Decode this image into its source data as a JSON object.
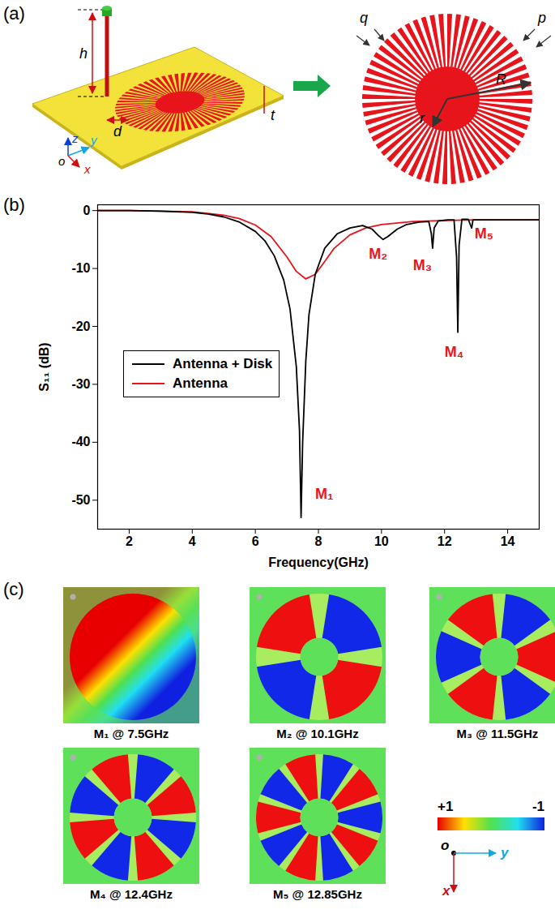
{
  "panel_a": {
    "label": "(a)",
    "left_view": {
      "labels": [
        "h",
        "d",
        "t"
      ],
      "axes": [
        "z",
        "y",
        "o",
        "x"
      ]
    },
    "right_view": {
      "labels": [
        "q",
        "p",
        "R",
        "r"
      ]
    },
    "spokes": 60
  },
  "chart_data": {
    "type": "line",
    "panel_label": "(b)",
    "xlabel": "Frequency(GHz)",
    "ylabel": "S₁₁ (dB)",
    "xlim": [
      1,
      15
    ],
    "ylim": [
      -55,
      1
    ],
    "xticks": [
      2,
      4,
      6,
      8,
      10,
      12,
      14
    ],
    "yticks": [
      0,
      -10,
      -20,
      -30,
      -40,
      -50
    ],
    "legend": "center left",
    "series": [
      {
        "name": "Antenna + Disk",
        "color": "#000000",
        "x": [
          1,
          2,
          3,
          4,
          4.5,
          5,
          5.5,
          6,
          6.3,
          6.6,
          6.9,
          7.1,
          7.3,
          7.4,
          7.45,
          7.5,
          7.6,
          7.7,
          7.9,
          8.2,
          8.6,
          9,
          9.4,
          9.7,
          9.9,
          10.05,
          10.2,
          10.5,
          10.8,
          11.2,
          11.5,
          11.58,
          11.62,
          11.67,
          11.8,
          12.1,
          12.3,
          12.38,
          12.42,
          12.46,
          12.55,
          12.75,
          12.82,
          12.86,
          12.9,
          13,
          14,
          15
        ],
        "values": [
          0,
          0,
          -0.1,
          -0.3,
          -0.6,
          -1.1,
          -2,
          -3.6,
          -5.2,
          -7.8,
          -12,
          -17,
          -27,
          -38,
          -53,
          -40,
          -26,
          -18,
          -11,
          -6.5,
          -4,
          -3,
          -2.6,
          -3.2,
          -4.3,
          -5,
          -4.5,
          -3.2,
          -2.4,
          -2.0,
          -1.9,
          -4,
          -6.5,
          -3,
          -1.8,
          -1.6,
          -1.6,
          -8,
          -21,
          -6,
          -1.5,
          -1.5,
          -2.5,
          -3,
          -1.6,
          -1.6,
          -1.6,
          -1.6
        ]
      },
      {
        "name": "Antenna",
        "color": "#e8141c",
        "x": [
          1,
          2,
          3,
          4,
          5,
          5.5,
          6,
          6.5,
          7,
          7.3,
          7.6,
          7.9,
          8.2,
          8.5,
          9,
          9.5,
          10,
          11,
          12,
          13,
          14,
          15
        ],
        "values": [
          0,
          0,
          -0.1,
          -0.2,
          -0.8,
          -1.4,
          -2.5,
          -4.5,
          -8,
          -10.5,
          -11.8,
          -11,
          -8.8,
          -6.5,
          -4.2,
          -3,
          -2.4,
          -1.9,
          -1.7,
          -1.6,
          -1.6,
          -1.6
        ]
      }
    ],
    "annotations": [
      {
        "text": "M₁",
        "x": 7.9,
        "y": -49
      },
      {
        "text": "M₂",
        "x": 9.6,
        "y": -7.5
      },
      {
        "text": "M₃",
        "x": 11.0,
        "y": -9.5
      },
      {
        "text": "M₄",
        "x": 12.0,
        "y": -24.5
      },
      {
        "text": "M₅",
        "x": 12.95,
        "y": -4
      }
    ]
  },
  "panel_c": {
    "label": "(c)",
    "maps": [
      {
        "caption": "M₁ @ 7.5GHz",
        "lobes": 2
      },
      {
        "caption": "M₂ @ 10.1GHz",
        "lobes": 4
      },
      {
        "caption": "M₃ @ 11.5GHz",
        "lobes": 6
      },
      {
        "caption": "M₄ @ 12.4GHz",
        "lobes": 8
      },
      {
        "caption": "M₅ @ 12.85GHz",
        "lobes": 10
      }
    ],
    "colorbar": {
      "range": [
        1,
        -1
      ],
      "ticks": [
        {
          "value": 1,
          "label": "+1"
        },
        {
          "value": -1,
          "label": "-1"
        }
      ]
    },
    "axes": [
      "o",
      "y",
      "x"
    ]
  }
}
